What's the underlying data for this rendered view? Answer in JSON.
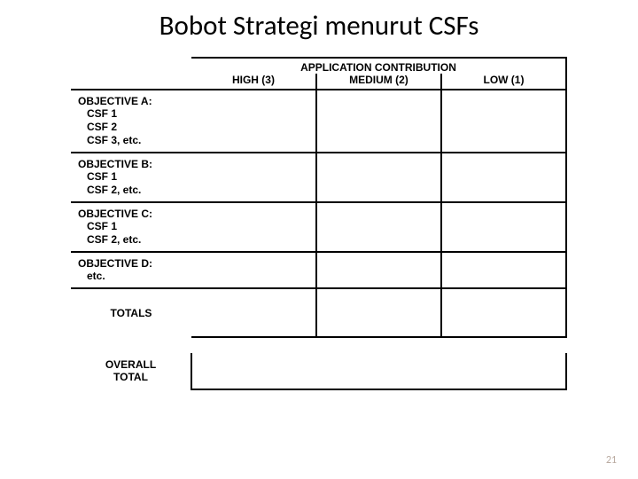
{
  "title": "Bobot Strategi menurut CSFs",
  "header": {
    "super": "APPLICATION CONTRIBUTION",
    "cols": [
      "HIGH (3)",
      "MEDIUM (2)",
      "LOW (1)"
    ]
  },
  "objectives": [
    {
      "head": "OBJECTIVE A:",
      "items": [
        "CSF 1",
        "CSF 2",
        "CSF 3, etc."
      ]
    },
    {
      "head": "OBJECTIVE B:",
      "items": [
        "CSF 1",
        "CSF 2, etc."
      ]
    },
    {
      "head": "OBJECTIVE C:",
      "items": [
        "CSF 1",
        "CSF 2, etc."
      ]
    },
    {
      "head": "OBJECTIVE D:",
      "items": [
        "etc."
      ]
    }
  ],
  "totals_label": "TOTALS",
  "overall_label_l1": "OVERALL",
  "overall_label_l2": "TOTAL",
  "page_number": "21",
  "colors": {
    "background": "#ffffff",
    "text": "#000000",
    "border": "#000000",
    "pagenum": "#b9aaa0"
  },
  "fontsizes": {
    "title": 31,
    "body": 12,
    "pagenum": 12
  }
}
